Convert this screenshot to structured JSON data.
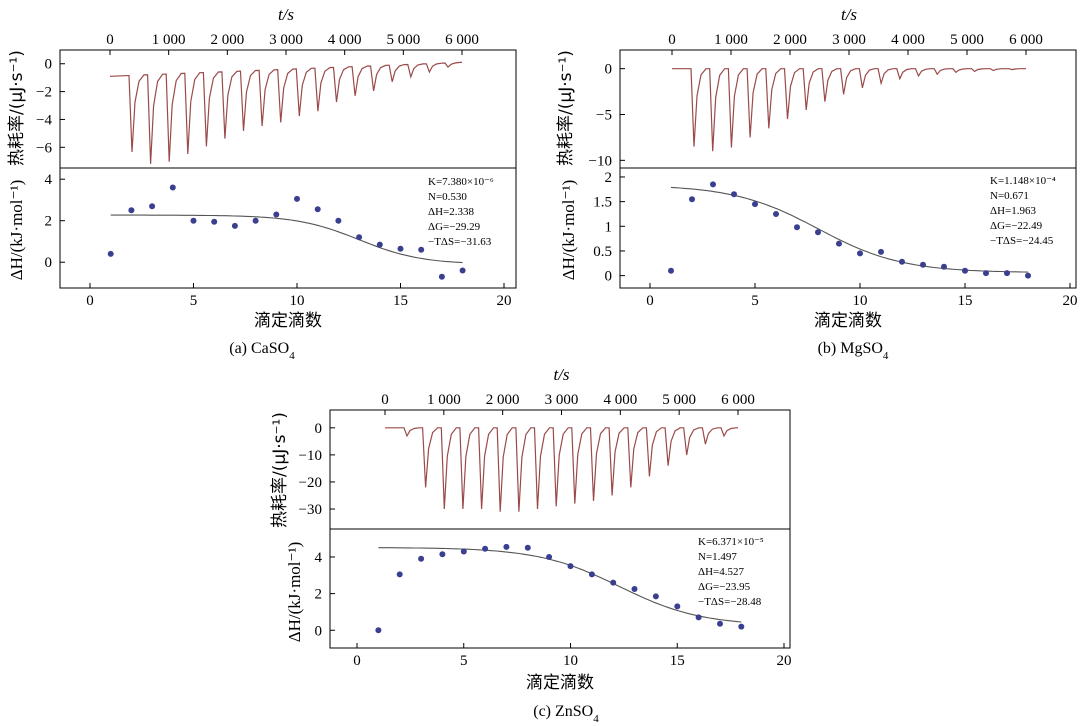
{
  "chart_data": [
    {
      "type": "line",
      "id": "a",
      "caption": "(a) CaSO",
      "caption_sub": "4",
      "top_axis": {
        "label": "t/s",
        "ticks": [
          "0",
          "1 000",
          "2 000",
          "3 000",
          "4 000",
          "5 000",
          "6 000"
        ],
        "xlim": [
          0,
          6000
        ]
      },
      "top_panel": {
        "ylabel": "热耗率/(μJ·s⁻¹)",
        "yticks": [
          0,
          -2,
          -4,
          -6
        ],
        "ylim": [
          -7.2,
          0.7
        ],
        "peaks": [
          -5.5,
          -6.4,
          -6.3,
          -5.8,
          -5.3,
          -4.8,
          -4.3,
          -4.0,
          -3.8,
          -3.4,
          -3.1,
          -2.5,
          -2.1,
          -1.8,
          -1.2,
          -0.9,
          -0.6,
          -0.3
        ],
        "baseline": [
          -0.9,
          0.1
        ]
      },
      "bottom_panel": {
        "xlabel": "滴定滴数",
        "ylabel": "ΔH/(kJ·mol⁻¹)",
        "xticks": [
          0,
          5,
          10,
          15,
          20
        ],
        "xlim": [
          -1.5,
          20.3
        ],
        "yticks": [
          0,
          2,
          4
        ],
        "ylim": [
          -1.05,
          4.25
        ],
        "x": [
          1,
          2,
          3,
          4,
          5,
          6,
          7,
          8,
          9,
          10,
          11,
          12,
          13,
          14,
          15,
          16,
          17,
          18
        ],
        "y": [
          0.4,
          2.5,
          2.7,
          3.6,
          2.0,
          1.95,
          1.75,
          2.0,
          2.3,
          3.05,
          2.55,
          2.0,
          1.2,
          0.85,
          0.65,
          0.6,
          -0.7,
          -0.4
        ],
        "fit": {
          "top": 2.27,
          "bottom": -0.1,
          "mid": 13.0,
          "width": 1.5,
          "start": 1,
          "end": 18
        },
        "annotation": [
          "K=7.380×10⁻⁶",
          "N=0.530",
          "ΔH=2.338",
          "ΔG=−29.29",
          "−TΔS=−31.63"
        ]
      }
    },
    {
      "type": "line",
      "id": "b",
      "caption": "(b) MgSO",
      "caption_sub": "4",
      "top_axis": {
        "label": "t/s",
        "ticks": [
          "0",
          "1 000",
          "2 000",
          "3 000",
          "4 000",
          "5 000",
          "6 000"
        ],
        "xlim": [
          0,
          6000
        ]
      },
      "top_panel": {
        "ylabel": "热耗率/(μJ·s⁻¹)",
        "yticks": [
          0,
          -5,
          -10
        ],
        "ylim": [
          -10.4,
          1.6
        ],
        "peaks": [
          -8.5,
          -9.0,
          -8.6,
          -7.5,
          -6.5,
          -5.5,
          -4.5,
          -3.6,
          -2.8,
          -2.1,
          -1.6,
          -1.1,
          -0.8,
          -0.6,
          -0.4,
          -0.3,
          -0.2,
          -0.1
        ],
        "baseline": [
          0.0,
          0.0
        ]
      },
      "bottom_panel": {
        "xlabel": "滴定滴数",
        "ylabel": "ΔH/(kJ·mol⁻¹)",
        "xticks": [
          0,
          5,
          10,
          15,
          20
        ],
        "xlim": [
          -0.2,
          20.9
        ],
        "yticks": [
          0,
          0.5,
          1.0,
          1.5,
          2.0
        ],
        "ylim": [
          -0.17,
          2.06
        ],
        "x": [
          1,
          2,
          3,
          4,
          5,
          6,
          7,
          8,
          9,
          10,
          11,
          12,
          13,
          14,
          15,
          16,
          17,
          18
        ],
        "y": [
          0.1,
          1.55,
          1.85,
          1.65,
          1.45,
          1.25,
          0.98,
          0.88,
          0.65,
          0.45,
          0.48,
          0.28,
          0.22,
          0.18,
          0.1,
          0.05,
          0.05,
          0.0
        ],
        "fit": {
          "top": 1.84,
          "bottom": 0.06,
          "mid": 8.0,
          "width": 2.0,
          "start": 1,
          "end": 18
        },
        "annotation": [
          "K=1.148×10⁻⁴",
          "N=0.671",
          "ΔH=1.963",
          "ΔG=−22.49",
          "−TΔS=−24.45"
        ]
      }
    },
    {
      "type": "line",
      "id": "c",
      "caption": "(c) ZnSO",
      "caption_sub": "4",
      "top_axis": {
        "label": "t/s",
        "ticks": [
          "0",
          "1 000",
          "2 000",
          "3 000",
          "4 000",
          "5 000",
          "6 000"
        ],
        "xlim": [
          0,
          6000
        ]
      },
      "top_panel": {
        "ylabel": "热耗率/(μJ·s⁻¹)",
        "yticks": [
          0,
          -10,
          -20,
          -30
        ],
        "ylim": [
          -35.9,
          5.1
        ],
        "peaks": [
          -3,
          -22,
          -30,
          -30,
          -30,
          -31,
          -31,
          -30,
          -29,
          -28,
          -27,
          -25,
          -22,
          -18,
          -14,
          -10,
          -6,
          -3
        ],
        "baseline": [
          0.0,
          0.0
        ]
      },
      "bottom_panel": {
        "xlabel": "滴定滴数",
        "ylabel": "ΔH/(kJ·mol⁻¹)",
        "xticks": [
          0,
          5,
          10,
          15,
          20
        ],
        "xlim": [
          -1.2,
          21.0
        ],
        "yticks": [
          0,
          2,
          4
        ],
        "ylim": [
          -0.75,
          5.2
        ],
        "x": [
          1,
          2,
          3,
          4,
          5,
          6,
          7,
          8,
          9,
          10,
          11,
          12,
          13,
          14,
          15,
          16,
          17,
          18
        ],
        "y": [
          0.0,
          3.05,
          3.9,
          4.15,
          4.3,
          4.45,
          4.55,
          4.5,
          4.0,
          3.5,
          3.05,
          2.6,
          2.25,
          1.85,
          1.3,
          0.7,
          0.35,
          0.2
        ],
        "fit": {
          "top": 4.52,
          "bottom": 0.25,
          "mid": 12.3,
          "width": 1.9,
          "start": 1,
          "end": 18
        },
        "annotation": [
          "K=6.371×10⁻⁵",
          "N=1.497",
          "ΔH=4.527",
          "ΔG=−23.95",
          "−TΔS=−28.48"
        ]
      }
    }
  ]
}
